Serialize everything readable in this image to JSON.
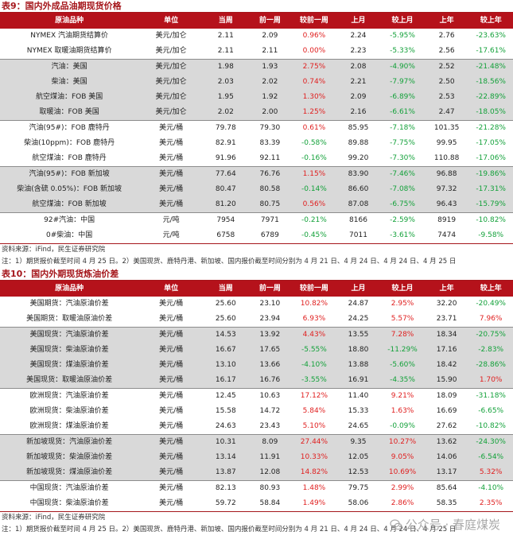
{
  "table9": {
    "title": "表9：国内外成品油期现货价格",
    "headers": [
      "原油品种",
      "单位",
      "当周",
      "前一周",
      "较前一周",
      "上月",
      "较上月",
      "上年",
      "较上年"
    ],
    "rows": [
      {
        "item": "NYMEX 汽油期货结算价",
        "unit": "美元/加仑",
        "cur": "2.11",
        "prev": "2.09",
        "wow": "0.96%",
        "lm": "2.24",
        "mom": "-5.95%",
        "ly": "2.76",
        "yoy": "-23.63%"
      },
      {
        "item": "NYMEX 取暖油期货结算价",
        "unit": "美元/加仑",
        "cur": "2.11",
        "prev": "2.11",
        "wow": "0.00%",
        "lm": "2.23",
        "mom": "-5.33%",
        "ly": "2.56",
        "yoy": "-17.61%"
      },
      {
        "item": "汽油：美国",
        "unit": "美元/加仑",
        "cur": "1.98",
        "prev": "1.93",
        "wow": "2.75%",
        "lm": "2.08",
        "mom": "-4.90%",
        "ly": "2.52",
        "yoy": "-21.48%"
      },
      {
        "item": "柴油：美国",
        "unit": "美元/加仑",
        "cur": "2.03",
        "prev": "2.02",
        "wow": "0.74%",
        "lm": "2.21",
        "mom": "-7.97%",
        "ly": "2.50",
        "yoy": "-18.56%"
      },
      {
        "item": "航空煤油：FOB 美国",
        "unit": "美元/加仑",
        "cur": "1.95",
        "prev": "1.92",
        "wow": "1.30%",
        "lm": "2.09",
        "mom": "-6.89%",
        "ly": "2.53",
        "yoy": "-22.89%"
      },
      {
        "item": "取暖油：FOB 美国",
        "unit": "美元/加仑",
        "cur": "2.02",
        "prev": "2.00",
        "wow": "1.25%",
        "lm": "2.16",
        "mom": "-6.61%",
        "ly": "2.47",
        "yoy": "-18.05%"
      },
      {
        "item": "汽油(95#)：FOB 鹿特丹",
        "unit": "美元/桶",
        "cur": "79.78",
        "prev": "79.30",
        "wow": "0.61%",
        "lm": "85.95",
        "mom": "-7.18%",
        "ly": "101.35",
        "yoy": "-21.28%"
      },
      {
        "item": "柴油(10ppm)：FOB 鹿特丹",
        "unit": "美元/桶",
        "cur": "82.91",
        "prev": "83.39",
        "wow": "-0.58%",
        "lm": "89.88",
        "mom": "-7.75%",
        "ly": "99.95",
        "yoy": "-17.05%"
      },
      {
        "item": "航空煤油：FOB 鹿特丹",
        "unit": "美元/桶",
        "cur": "91.96",
        "prev": "92.11",
        "wow": "-0.16%",
        "lm": "99.20",
        "mom": "-7.30%",
        "ly": "110.88",
        "yoy": "-17.06%"
      },
      {
        "item": "汽油(95#)：FOB 新加坡",
        "unit": "美元/桶",
        "cur": "77.64",
        "prev": "76.76",
        "wow": "1.15%",
        "lm": "83.90",
        "mom": "-7.46%",
        "ly": "96.88",
        "yoy": "-19.86%"
      },
      {
        "item": "柴油(含硫 0.05%)：FOB 新加坡",
        "unit": "美元/桶",
        "cur": "80.47",
        "prev": "80.58",
        "wow": "-0.14%",
        "lm": "86.60",
        "mom": "-7.08%",
        "ly": "97.32",
        "yoy": "-17.31%"
      },
      {
        "item": "航空煤油：FOB 新加坡",
        "unit": "美元/桶",
        "cur": "81.20",
        "prev": "80.75",
        "wow": "0.56%",
        "lm": "87.08",
        "mom": "-6.75%",
        "ly": "96.43",
        "yoy": "-15.79%"
      },
      {
        "item": "92#汽油：中国",
        "unit": "元/吨",
        "cur": "7954",
        "prev": "7971",
        "wow": "-0.21%",
        "lm": "8166",
        "mom": "-2.59%",
        "ly": "8919",
        "yoy": "-10.82%"
      },
      {
        "item": "0#柴油：中国",
        "unit": "元/吨",
        "cur": "6758",
        "prev": "6789",
        "wow": "-0.45%",
        "lm": "7011",
        "mom": "-3.61%",
        "ly": "7474",
        "yoy": "-9.58%"
      }
    ],
    "source": "资料来源：iFind，民生证券研究院",
    "note": "注：1）期货报价截至时间 4 月 25 日。2）美国现货、鹿特丹港、新加坡、国内报价截至时间分别为 4 月 21 日、4 月 24 日、4 月 24 日、4 月 25 日"
  },
  "table10": {
    "title": "表10：国内外期现货炼油价差",
    "headers": [
      "原油品种",
      "单位",
      "当周",
      "前一周",
      "较前一周",
      "上月",
      "较上月",
      "上年",
      "较上年"
    ],
    "rows": [
      {
        "item": "美国期货：汽油原油价差",
        "unit": "美元/桶",
        "cur": "25.60",
        "prev": "23.10",
        "wow": "10.82%",
        "lm": "24.87",
        "mom": "2.95%",
        "ly": "32.20",
        "yoy": "-20.49%"
      },
      {
        "item": "美国期货：取暖油原油价差",
        "unit": "美元/桶",
        "cur": "25.60",
        "prev": "23.94",
        "wow": "6.93%",
        "lm": "24.25",
        "mom": "5.57%",
        "ly": "23.71",
        "yoy": "7.96%"
      },
      {
        "item": "美国现货：汽油原油价差",
        "unit": "美元/桶",
        "cur": "14.53",
        "prev": "13.92",
        "wow": "4.43%",
        "lm": "13.55",
        "mom": "7.28%",
        "ly": "18.34",
        "yoy": "-20.75%"
      },
      {
        "item": "美国现货：柴油原油价差",
        "unit": "美元/桶",
        "cur": "16.67",
        "prev": "17.65",
        "wow": "-5.55%",
        "lm": "18.80",
        "mom": "-11.29%",
        "ly": "17.16",
        "yoy": "-2.83%"
      },
      {
        "item": "美国现货：煤油原油价差",
        "unit": "美元/桶",
        "cur": "13.10",
        "prev": "13.66",
        "wow": "-4.10%",
        "lm": "13.88",
        "mom": "-5.60%",
        "ly": "18.42",
        "yoy": "-28.86%"
      },
      {
        "item": "美国现货：取暖油原油价差",
        "unit": "美元/桶",
        "cur": "16.17",
        "prev": "16.76",
        "wow": "-3.55%",
        "lm": "16.91",
        "mom": "-4.35%",
        "ly": "15.90",
        "yoy": "1.70%"
      },
      {
        "item": "欧洲现货：汽油原油价差",
        "unit": "美元/桶",
        "cur": "12.45",
        "prev": "10.63",
        "wow": "17.12%",
        "lm": "11.40",
        "mom": "9.21%",
        "ly": "18.09",
        "yoy": "-31.18%"
      },
      {
        "item": "欧洲现货：柴油原油价差",
        "unit": "美元/桶",
        "cur": "15.58",
        "prev": "14.72",
        "wow": "5.84%",
        "lm": "15.33",
        "mom": "1.63%",
        "ly": "16.69",
        "yoy": "-6.65%"
      },
      {
        "item": "欧洲现货：煤油原油价差",
        "unit": "美元/桶",
        "cur": "24.63",
        "prev": "23.43",
        "wow": "5.10%",
        "lm": "24.65",
        "mom": "-0.09%",
        "ly": "27.62",
        "yoy": "-10.82%"
      },
      {
        "item": "新加坡现货：汽油原油价差",
        "unit": "美元/桶",
        "cur": "10.31",
        "prev": "8.09",
        "wow": "27.44%",
        "lm": "9.35",
        "mom": "10.27%",
        "ly": "13.62",
        "yoy": "-24.30%"
      },
      {
        "item": "新加坡现货：柴油原油价差",
        "unit": "美元/桶",
        "cur": "13.14",
        "prev": "11.91",
        "wow": "10.33%",
        "lm": "12.05",
        "mom": "9.05%",
        "ly": "14.06",
        "yoy": "-6.54%"
      },
      {
        "item": "新加坡现货：煤油原油价差",
        "unit": "美元/桶",
        "cur": "13.87",
        "prev": "12.08",
        "wow": "14.82%",
        "lm": "12.53",
        "mom": "10.69%",
        "ly": "13.17",
        "yoy": "5.32%"
      },
      {
        "item": "中国现货：汽油原油价差",
        "unit": "美元/桶",
        "cur": "82.13",
        "prev": "80.93",
        "wow": "1.48%",
        "lm": "79.75",
        "mom": "2.99%",
        "ly": "85.64",
        "yoy": "-4.10%"
      },
      {
        "item": "中国现货：柴油原油价差",
        "unit": "美元/桶",
        "cur": "59.72",
        "prev": "58.84",
        "wow": "1.49%",
        "lm": "58.06",
        "mom": "2.86%",
        "ly": "58.35",
        "yoy": "2.35%"
      }
    ],
    "source": "资料来源：iFind，民生证券研究院",
    "note": "注：1）期货报价截至时间 4 月 25 日。2）美国现货、鹿特丹港、新加坡、国内报价截至时间分别为 4 月 21 日、4 月 24 日、4 月 24 日、4 月 25 日"
  },
  "watermark": {
    "text": "公众号 · 春庭煤炭"
  },
  "colors": {
    "header_bg": "#b5121b",
    "title": "#a5161b",
    "shade": "#d9d9d9",
    "pos": "#e02020",
    "neg": "#13a13a"
  }
}
